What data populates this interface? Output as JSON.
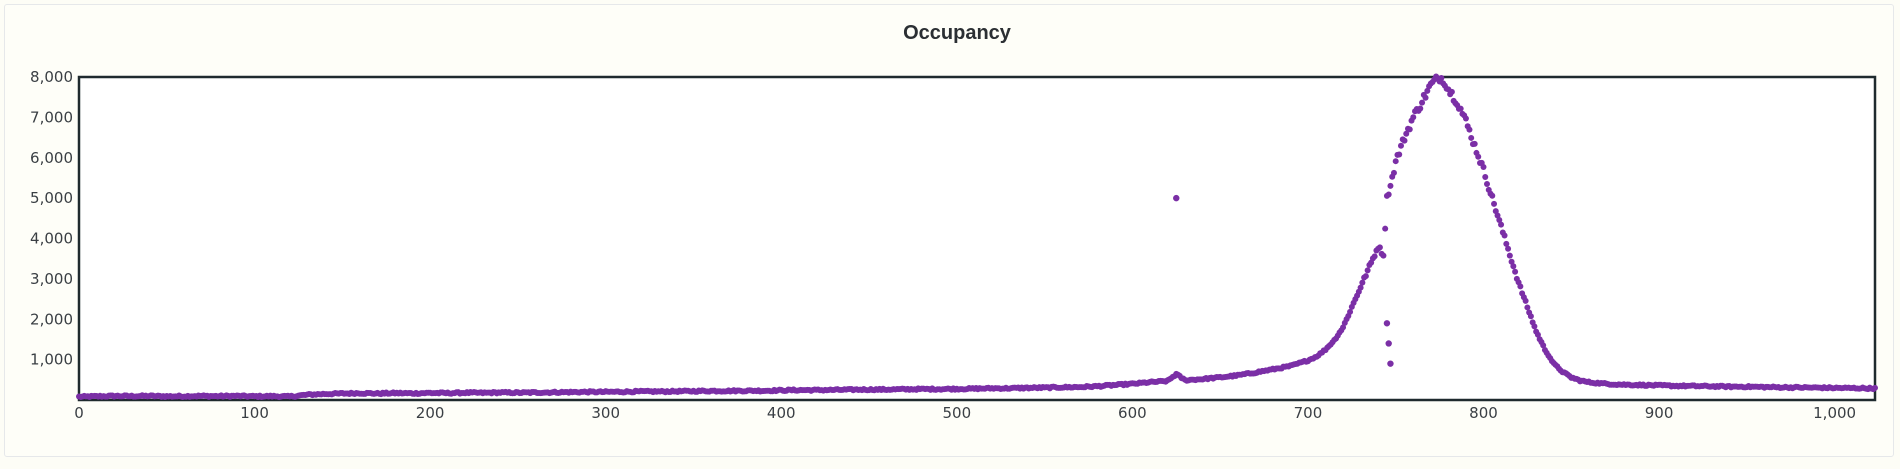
{
  "chart_data": {
    "type": "scatter",
    "title": "Occupancy",
    "xlabel": "",
    "ylabel": "",
    "xlim": [
      0,
      1023
    ],
    "ylim": [
      0,
      8000
    ],
    "x_ticks": [
      "0",
      "100",
      "200",
      "300",
      "400",
      "500",
      "600",
      "700",
      "800",
      "900",
      "1,000"
    ],
    "y_ticks": [
      "1,000",
      "2,000",
      "3,000",
      "4,000",
      "5,000",
      "6,000",
      "7,000",
      "8,000"
    ],
    "grid": false,
    "legend": "none",
    "marker_color": "#7b2fa6",
    "series": [
      {
        "values_per_x": "one occupancy value per bin 0..1023",
        "x": [
          0,
          10,
          20,
          30,
          40,
          50,
          60,
          70,
          80,
          90,
          100,
          110,
          120,
          130,
          140,
          150,
          160,
          170,
          180,
          190,
          200,
          210,
          220,
          230,
          240,
          250,
          260,
          270,
          280,
          290,
          300,
          310,
          320,
          330,
          340,
          350,
          360,
          370,
          380,
          390,
          400,
          410,
          420,
          430,
          440,
          450,
          460,
          470,
          480,
          490,
          500,
          510,
          520,
          530,
          540,
          550,
          560,
          570,
          580,
          590,
          600,
          610,
          620,
          625,
          630,
          640,
          650,
          660,
          670,
          680,
          690,
          700,
          705,
          710,
          715,
          720,
          725,
          730,
          735,
          740,
          743,
          745,
          748,
          750,
          755,
          760,
          765,
          770,
          775,
          778,
          780,
          785,
          790,
          795,
          800,
          805,
          810,
          815,
          820,
          825,
          830,
          835,
          840,
          845,
          850,
          855,
          860,
          870,
          880,
          890,
          900,
          910,
          920,
          930,
          940,
          950,
          960,
          970,
          980,
          990,
          1000,
          1010,
          1020,
          1023
        ],
        "y": [
          80,
          90,
          100,
          95,
          100,
          90,
          95,
          100,
          95,
          100,
          90,
          95,
          85,
          130,
          150,
          160,
          170,
          160,
          170,
          165,
          175,
          170,
          180,
          175,
          185,
          180,
          185,
          190,
          195,
          200,
          200,
          205,
          210,
          210,
          215,
          220,
          225,
          225,
          230,
          230,
          240,
          245,
          245,
          250,
          255,
          260,
          260,
          265,
          270,
          270,
          275,
          280,
          290,
          290,
          300,
          305,
          315,
          320,
          340,
          370,
          400,
          440,
          470,
          640,
          490,
          520,
          560,
          610,
          680,
          760,
          840,
          980,
          1080,
          1250,
          1480,
          1800,
          2300,
          2800,
          3300,
          3800,
          3600,
          5000,
          5500,
          5900,
          6500,
          7000,
          7400,
          7800,
          8000,
          7900,
          7700,
          7400,
          6900,
          6300,
          5700,
          5000,
          4300,
          3600,
          2900,
          2300,
          1700,
          1250,
          900,
          700,
          560,
          480,
          440,
          400,
          380,
          370,
          360,
          350,
          345,
          340,
          330,
          330,
          320,
          315,
          310,
          305,
          300,
          295,
          290,
          285
        ],
        "outliers": [
          {
            "x": 625,
            "y": 5000
          },
          {
            "x": 745,
            "y": 1900
          },
          {
            "x": 746,
            "y": 1400
          },
          {
            "x": 747,
            "y": 900
          }
        ]
      }
    ]
  }
}
